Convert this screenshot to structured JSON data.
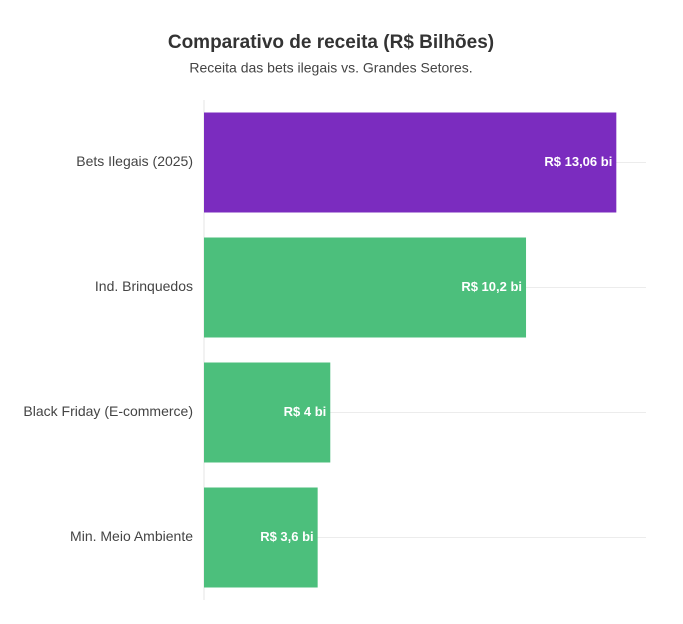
{
  "chart_data": {
    "type": "barh",
    "title": "Comparativo de receita (R$ Bilhões)",
    "subtitle": "Receita das bets ilegais vs. Grandes Setores.",
    "categories": [
      "Bets Ilegais (2025)",
      "Ind. Brinquedos",
      "Black Friday (E-commerce)",
      "Min. Meio Ambiente"
    ],
    "values": [
      13.06,
      10.2,
      4,
      3.6
    ],
    "value_labels": [
      "R$ 13,06 bi",
      "R$ 10,2 bi",
      "R$ 4 bi",
      "R$ 3,6 bi"
    ],
    "colors": [
      "#7b2cbf",
      "#4cbf7c",
      "#4cbf7c",
      "#4cbf7c"
    ],
    "xlim": [
      0,
      14
    ],
    "grid": true
  }
}
